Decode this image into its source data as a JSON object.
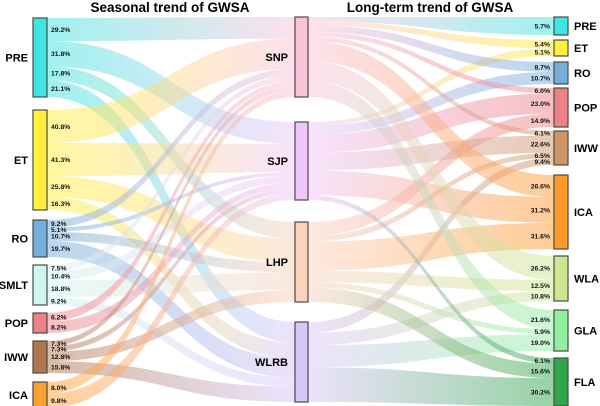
{
  "chart_data": {
    "type": "sankey",
    "titles": {
      "left": "Seasonal trend of GWSA",
      "right": "Long-term trend of GWSA"
    },
    "columns": {
      "left": [
        {
          "id": "PRE",
          "label": "PRE",
          "color": "#40E4E0"
        },
        {
          "id": "ET",
          "label": "ET",
          "color": "#FFF13B"
        },
        {
          "id": "RO",
          "label": "RO",
          "color": "#74AEDC"
        },
        {
          "id": "SMLT",
          "label": "SMLT",
          "color": "#CFF5EF"
        },
        {
          "id": "POP",
          "label": "POP",
          "color": "#EE8186"
        },
        {
          "id": "IWW",
          "label": "IWW",
          "color": "#B0764E"
        },
        {
          "id": "ICA",
          "label": "ICA",
          "color": "#FFA033"
        }
      ],
      "middle": [
        {
          "id": "SNP",
          "label": "SNP",
          "color": "#F9C3DA"
        },
        {
          "id": "SJP",
          "label": "SJP",
          "color": "#EFC6F8"
        },
        {
          "id": "LHP",
          "label": "LHP",
          "color": "#FAD2BE"
        },
        {
          "id": "WLRB",
          "label": "WLRB",
          "color": "#D9C6F8"
        }
      ],
      "right": [
        {
          "id": "PRE_R",
          "label": "PRE",
          "color": "#40E4E0"
        },
        {
          "id": "ET_R",
          "label": "ET",
          "color": "#FFEE3C"
        },
        {
          "id": "RO_R",
          "label": "RO",
          "color": "#74AEDC"
        },
        {
          "id": "POP_R",
          "label": "POP",
          "color": "#EE8186"
        },
        {
          "id": "IWW_R",
          "label": "IWW",
          "color": "#CF9464"
        },
        {
          "id": "ICA_R",
          "label": "ICA",
          "color": "#FF9A2E"
        },
        {
          "id": "WLA_R",
          "label": "WLA",
          "color": "#CDE791"
        },
        {
          "id": "GLA_R",
          "label": "GLA",
          "color": "#90F0A0"
        },
        {
          "id": "FLA_R",
          "label": "FLA",
          "color": "#2FA64A"
        }
      ]
    },
    "links_left_to_middle": [
      {
        "source": "PRE",
        "target": "SNP",
        "percent": 29.2
      },
      {
        "source": "PRE",
        "target": "SJP",
        "percent": 31.8
      },
      {
        "source": "PRE",
        "target": "LHP",
        "percent": 17.8
      },
      {
        "source": "PRE",
        "target": "WLRB",
        "percent": 21.1
      },
      {
        "source": "ET",
        "target": "SNP",
        "percent": 40.8
      },
      {
        "source": "ET",
        "target": "SJP",
        "percent": 41.3
      },
      {
        "source": "ET",
        "target": "LHP",
        "percent": 25.8
      },
      {
        "source": "ET",
        "target": "WLRB",
        "percent": 16.3
      },
      {
        "source": "RO",
        "target": "SNP",
        "percent": 9.2
      },
      {
        "source": "RO",
        "target": "SJP",
        "percent": 5.1
      },
      {
        "source": "RO",
        "target": "LHP",
        "percent": 10.7
      },
      {
        "source": "RO",
        "target": "WLRB",
        "percent": 19.7
      },
      {
        "source": "SMLT",
        "target": "SNP",
        "percent": 7.5
      },
      {
        "source": "SMLT",
        "target": "SJP",
        "percent": 10.4
      },
      {
        "source": "SMLT",
        "target": "LHP",
        "percent": 18.8
      },
      {
        "source": "SMLT",
        "target": "WLRB",
        "percent": 9.2
      },
      {
        "source": "POP",
        "target": "SNP",
        "percent": 6.2
      },
      {
        "source": "POP",
        "target": "SJP",
        "percent": 8.2
      },
      {
        "source": "IWW",
        "target": "SNP",
        "percent": 7.3
      },
      {
        "source": "IWW",
        "target": "SJP",
        "percent": 7.3
      },
      {
        "source": "IWW",
        "target": "LHP",
        "percent": 12.8
      },
      {
        "source": "IWW",
        "target": "WLRB",
        "percent": 15.8
      },
      {
        "source": "ICA",
        "target": "SNP",
        "percent": 8.0
      },
      {
        "source": "ICA",
        "target": "SJP",
        "percent": 9.8
      }
    ],
    "links_middle_to_right": [
      {
        "source": "SNP",
        "target": "PRE_R",
        "percent": 5.7
      },
      {
        "source": "SNP",
        "target": "ET_R",
        "percent": 5.4
      },
      {
        "source": "SJP",
        "target": "ET_R",
        "percent": 5.1
      },
      {
        "source": "SNP",
        "target": "RO_R",
        "percent": 8.7
      },
      {
        "source": "SJP",
        "target": "RO_R",
        "percent": 10.7
      },
      {
        "source": "SNP",
        "target": "POP_R",
        "percent": 6.0
      },
      {
        "source": "SJP",
        "target": "POP_R",
        "percent": 23.0
      },
      {
        "source": "LHP",
        "target": "POP_R",
        "percent": 14.9
      },
      {
        "source": "SNP",
        "target": "IWW_R",
        "percent": 6.1
      },
      {
        "source": "SJP",
        "target": "IWW_R",
        "percent": 22.6
      },
      {
        "source": "LHP",
        "target": "IWW_R",
        "percent": 6.5
      },
      {
        "source": "WLRB",
        "target": "IWW_R",
        "percent": 9.4
      },
      {
        "source": "SNP",
        "target": "ICA_R",
        "percent": 26.6
      },
      {
        "source": "SJP",
        "target": "ICA_R",
        "percent": 31.2
      },
      {
        "source": "LHP",
        "target": "ICA_R",
        "percent": 31.6
      },
      {
        "source": "SNP",
        "target": "WLA_R",
        "percent": 26.2
      },
      {
        "source": "LHP",
        "target": "WLA_R",
        "percent": 12.5
      },
      {
        "source": "WLRB",
        "target": "WLA_R",
        "percent": 10.8
      },
      {
        "source": "SNP",
        "target": "GLA_R",
        "percent": 21.6
      },
      {
        "source": "LHP",
        "target": "GLA_R",
        "percent": 5.9
      },
      {
        "source": "WLRB",
        "target": "GLA_R",
        "percent": 19.0
      },
      {
        "source": "SJP",
        "target": "FLA_R",
        "percent": 6.1
      },
      {
        "source": "LHP",
        "target": "FLA_R",
        "percent": 15.6
      },
      {
        "source": "WLRB",
        "target": "FLA_R",
        "percent": 30.2
      }
    ]
  }
}
